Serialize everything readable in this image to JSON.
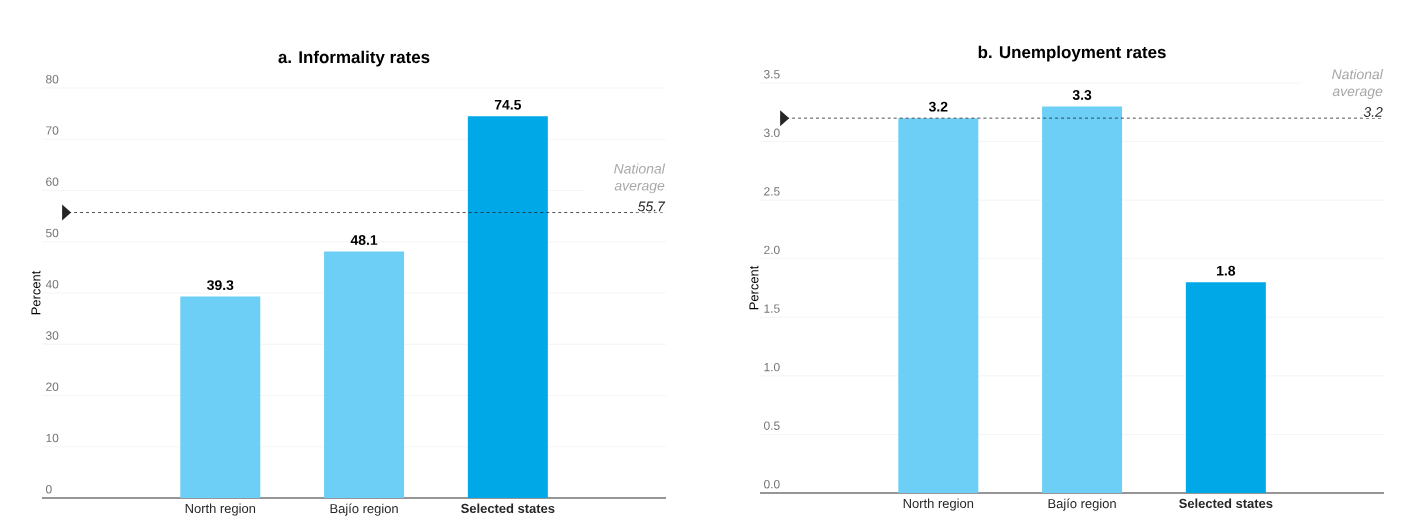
{
  "chart_data": [
    {
      "type": "bar",
      "title": "a.   Informality rates",
      "ylabel": "Percent",
      "categories": [
        "North region",
        "Bajío region",
        "Selected states"
      ],
      "values": [
        39.3,
        48.1,
        74.5
      ],
      "colors": [
        "#6dcff6",
        "#6dcff6",
        "#00a8e8"
      ],
      "ylim": [
        0,
        80
      ],
      "yticks": [
        0,
        10,
        20,
        30,
        40,
        50,
        60,
        70,
        80
      ],
      "grid": "y",
      "data_labels": true,
      "ref_lines": [
        {
          "axis": "y",
          "value": 55.7,
          "label": "55.7",
          "line_style": "dashed"
        }
      ],
      "annotations": [
        "National average"
      ]
    },
    {
      "type": "bar",
      "title": "b.   Unemployment rates",
      "ylabel": "Percent",
      "categories": [
        "North region",
        "Bajío region",
        "Selected states"
      ],
      "values": [
        3.2,
        3.3,
        1.8
      ],
      "colors": [
        "#6dcff6",
        "#6dcff6",
        "#00a8e8"
      ],
      "ylim": [
        0,
        3.5
      ],
      "yticks": [
        {
          "value": 0,
          "label": "0.0"
        },
        {
          "value": 0.5,
          "label": "0.5"
        },
        {
          "value": 1,
          "label": "1.0"
        },
        {
          "value": 1.5,
          "label": "1.5"
        },
        {
          "value": 2,
          "label": "2.0"
        },
        {
          "value": 2.5,
          "label": "2.5"
        },
        {
          "value": 3,
          "label": "3.0"
        },
        {
          "value": 3.5,
          "label": "3.5"
        }
      ],
      "grid": "y",
      "data_labels": true,
      "ref_lines": [
        {
          "axis": "y",
          "value": 3.2,
          "label": "3.2",
          "line_style": "dashed"
        }
      ],
      "annotations": [
        "National average"
      ]
    }
  ]
}
